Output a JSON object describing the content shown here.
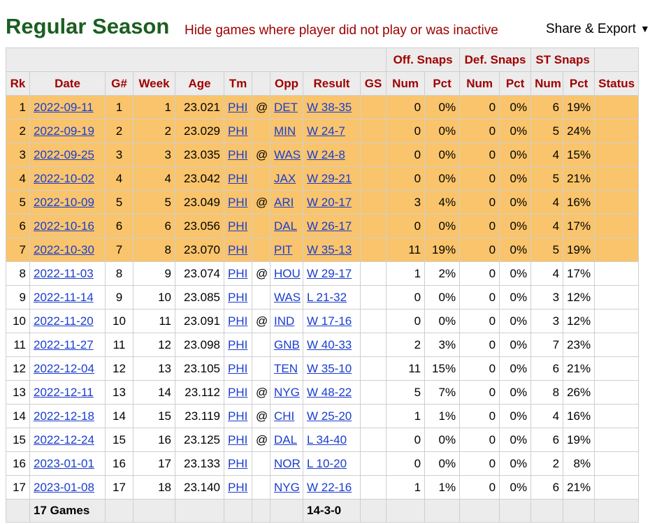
{
  "header": {
    "title": "Regular Season",
    "note": "Hide games where player did not play or was inactive",
    "export_label": "Share & Export",
    "export_arrow": "▼"
  },
  "table": {
    "groups": {
      "off": "Off. Snaps",
      "def": "Def. Snaps",
      "st": "ST Snaps"
    },
    "columns": [
      "Rk",
      "Date",
      "G#",
      "Week",
      "Age",
      "Tm",
      "",
      "Opp",
      "Result",
      "GS",
      "Num",
      "Pct",
      "Num",
      "Pct",
      "Num",
      "Pct",
      "Status"
    ],
    "rows": [
      {
        "rk": "1",
        "date": "2022-09-11",
        "g": "1",
        "week": "1",
        "age": "23.021",
        "tm": "PHI",
        "at": "@",
        "opp": "DET",
        "result": "W 38-35",
        "gs": "",
        "off_num": "0",
        "off_pct": "0%",
        "def_num": "0",
        "def_pct": "0%",
        "st_num": "6",
        "st_pct": "19%",
        "status": "",
        "highlight": true
      },
      {
        "rk": "2",
        "date": "2022-09-19",
        "g": "2",
        "week": "2",
        "age": "23.029",
        "tm": "PHI",
        "at": "",
        "opp": "MIN",
        "result": "W 24-7",
        "gs": "",
        "off_num": "0",
        "off_pct": "0%",
        "def_num": "0",
        "def_pct": "0%",
        "st_num": "5",
        "st_pct": "24%",
        "status": "",
        "highlight": true
      },
      {
        "rk": "3",
        "date": "2022-09-25",
        "g": "3",
        "week": "3",
        "age": "23.035",
        "tm": "PHI",
        "at": "@",
        "opp": "WAS",
        "result": "W 24-8",
        "gs": "",
        "off_num": "0",
        "off_pct": "0%",
        "def_num": "0",
        "def_pct": "0%",
        "st_num": "4",
        "st_pct": "15%",
        "status": "",
        "highlight": true
      },
      {
        "rk": "4",
        "date": "2022-10-02",
        "g": "4",
        "week": "4",
        "age": "23.042",
        "tm": "PHI",
        "at": "",
        "opp": "JAX",
        "result": "W 29-21",
        "gs": "",
        "off_num": "0",
        "off_pct": "0%",
        "def_num": "0",
        "def_pct": "0%",
        "st_num": "5",
        "st_pct": "21%",
        "status": "",
        "highlight": true
      },
      {
        "rk": "5",
        "date": "2022-10-09",
        "g": "5",
        "week": "5",
        "age": "23.049",
        "tm": "PHI",
        "at": "@",
        "opp": "ARI",
        "result": "W 20-17",
        "gs": "",
        "off_num": "3",
        "off_pct": "4%",
        "def_num": "0",
        "def_pct": "0%",
        "st_num": "4",
        "st_pct": "16%",
        "status": "",
        "highlight": true
      },
      {
        "rk": "6",
        "date": "2022-10-16",
        "g": "6",
        "week": "6",
        "age": "23.056",
        "tm": "PHI",
        "at": "",
        "opp": "DAL",
        "result": "W 26-17",
        "gs": "",
        "off_num": "0",
        "off_pct": "0%",
        "def_num": "0",
        "def_pct": "0%",
        "st_num": "4",
        "st_pct": "17%",
        "status": "",
        "highlight": true
      },
      {
        "rk": "7",
        "date": "2022-10-30",
        "g": "7",
        "week": "8",
        "age": "23.070",
        "tm": "PHI",
        "at": "",
        "opp": "PIT",
        "result": "W 35-13",
        "gs": "",
        "off_num": "11",
        "off_pct": "19%",
        "def_num": "0",
        "def_pct": "0%",
        "st_num": "5",
        "st_pct": "19%",
        "status": "",
        "highlight": true
      },
      {
        "rk": "8",
        "date": "2022-11-03",
        "g": "8",
        "week": "9",
        "age": "23.074",
        "tm": "PHI",
        "at": "@",
        "opp": "HOU",
        "result": "W 29-17",
        "gs": "",
        "off_num": "1",
        "off_pct": "2%",
        "def_num": "0",
        "def_pct": "0%",
        "st_num": "4",
        "st_pct": "17%",
        "status": "",
        "highlight": false
      },
      {
        "rk": "9",
        "date": "2022-11-14",
        "g": "9",
        "week": "10",
        "age": "23.085",
        "tm": "PHI",
        "at": "",
        "opp": "WAS",
        "result": "L 21-32",
        "gs": "",
        "off_num": "0",
        "off_pct": "0%",
        "def_num": "0",
        "def_pct": "0%",
        "st_num": "3",
        "st_pct": "12%",
        "status": "",
        "highlight": false
      },
      {
        "rk": "10",
        "date": "2022-11-20",
        "g": "10",
        "week": "11",
        "age": "23.091",
        "tm": "PHI",
        "at": "@",
        "opp": "IND",
        "result": "W 17-16",
        "gs": "",
        "off_num": "0",
        "off_pct": "0%",
        "def_num": "0",
        "def_pct": "0%",
        "st_num": "3",
        "st_pct": "12%",
        "status": "",
        "highlight": false
      },
      {
        "rk": "11",
        "date": "2022-11-27",
        "g": "11",
        "week": "12",
        "age": "23.098",
        "tm": "PHI",
        "at": "",
        "opp": "GNB",
        "result": "W 40-33",
        "gs": "",
        "off_num": "2",
        "off_pct": "3%",
        "def_num": "0",
        "def_pct": "0%",
        "st_num": "7",
        "st_pct": "23%",
        "status": "",
        "highlight": false
      },
      {
        "rk": "12",
        "date": "2022-12-04",
        "g": "12",
        "week": "13",
        "age": "23.105",
        "tm": "PHI",
        "at": "",
        "opp": "TEN",
        "result": "W 35-10",
        "gs": "",
        "off_num": "11",
        "off_pct": "15%",
        "def_num": "0",
        "def_pct": "0%",
        "st_num": "6",
        "st_pct": "21%",
        "status": "",
        "highlight": false
      },
      {
        "rk": "13",
        "date": "2022-12-11",
        "g": "13",
        "week": "14",
        "age": "23.112",
        "tm": "PHI",
        "at": "@",
        "opp": "NYG",
        "result": "W 48-22",
        "gs": "",
        "off_num": "5",
        "off_pct": "7%",
        "def_num": "0",
        "def_pct": "0%",
        "st_num": "8",
        "st_pct": "26%",
        "status": "",
        "highlight": false
      },
      {
        "rk": "14",
        "date": "2022-12-18",
        "g": "14",
        "week": "15",
        "age": "23.119",
        "tm": "PHI",
        "at": "@",
        "opp": "CHI",
        "result": "W 25-20",
        "gs": "",
        "off_num": "1",
        "off_pct": "1%",
        "def_num": "0",
        "def_pct": "0%",
        "st_num": "4",
        "st_pct": "16%",
        "status": "",
        "highlight": false
      },
      {
        "rk": "15",
        "date": "2022-12-24",
        "g": "15",
        "week": "16",
        "age": "23.125",
        "tm": "PHI",
        "at": "@",
        "opp": "DAL",
        "result": "L 34-40",
        "gs": "",
        "off_num": "0",
        "off_pct": "0%",
        "def_num": "0",
        "def_pct": "0%",
        "st_num": "6",
        "st_pct": "19%",
        "status": "",
        "highlight": false
      },
      {
        "rk": "16",
        "date": "2023-01-01",
        "g": "16",
        "week": "17",
        "age": "23.133",
        "tm": "PHI",
        "at": "",
        "opp": "NOR",
        "result": "L 10-20",
        "gs": "",
        "off_num": "0",
        "off_pct": "0%",
        "def_num": "0",
        "def_pct": "0%",
        "st_num": "2",
        "st_pct": "8%",
        "status": "",
        "highlight": false
      },
      {
        "rk": "17",
        "date": "2023-01-08",
        "g": "17",
        "week": "18",
        "age": "23.140",
        "tm": "PHI",
        "at": "",
        "opp": "NYG",
        "result": "W 22-16",
        "gs": "",
        "off_num": "1",
        "off_pct": "1%",
        "def_num": "0",
        "def_pct": "0%",
        "st_num": "6",
        "st_pct": "21%",
        "status": "",
        "highlight": false
      }
    ],
    "footer": {
      "games": "17 Games",
      "record": "14-3-0"
    }
  },
  "colors": {
    "title": "#1b5e20",
    "accent": "#a00000",
    "highlight": "#f9c46b",
    "link": "#1a3dd0"
  }
}
